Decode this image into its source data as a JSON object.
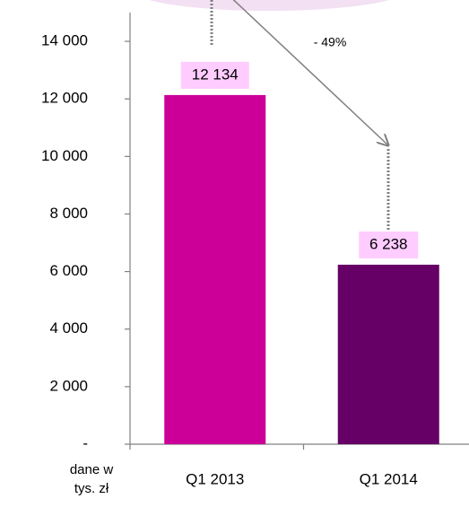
{
  "chart_data": {
    "type": "bar",
    "categories": [
      "Q1 2013",
      "Q1 2014"
    ],
    "values": [
      12134,
      6238
    ],
    "value_labels": [
      "12 134",
      "6 238"
    ],
    "colors": [
      "#cc0099",
      "#660066"
    ],
    "label_background": "#ffccff",
    "ylim": [
      0,
      15000
    ],
    "yticks": [
      {
        "value": 0,
        "label": "-"
      },
      {
        "value": 2000,
        "label": "2 000"
      },
      {
        "value": 4000,
        "label": "4 000"
      },
      {
        "value": 6000,
        "label": "6 000"
      },
      {
        "value": 8000,
        "label": "8 000"
      },
      {
        "value": 10000,
        "label": "10 000"
      },
      {
        "value": 12000,
        "label": "12 000"
      },
      {
        "value": 14000,
        "label": "14 000"
      }
    ],
    "grid": false,
    "annotation": "- 49%",
    "unit_label": [
      "dane w",
      "tys. zł"
    ]
  }
}
